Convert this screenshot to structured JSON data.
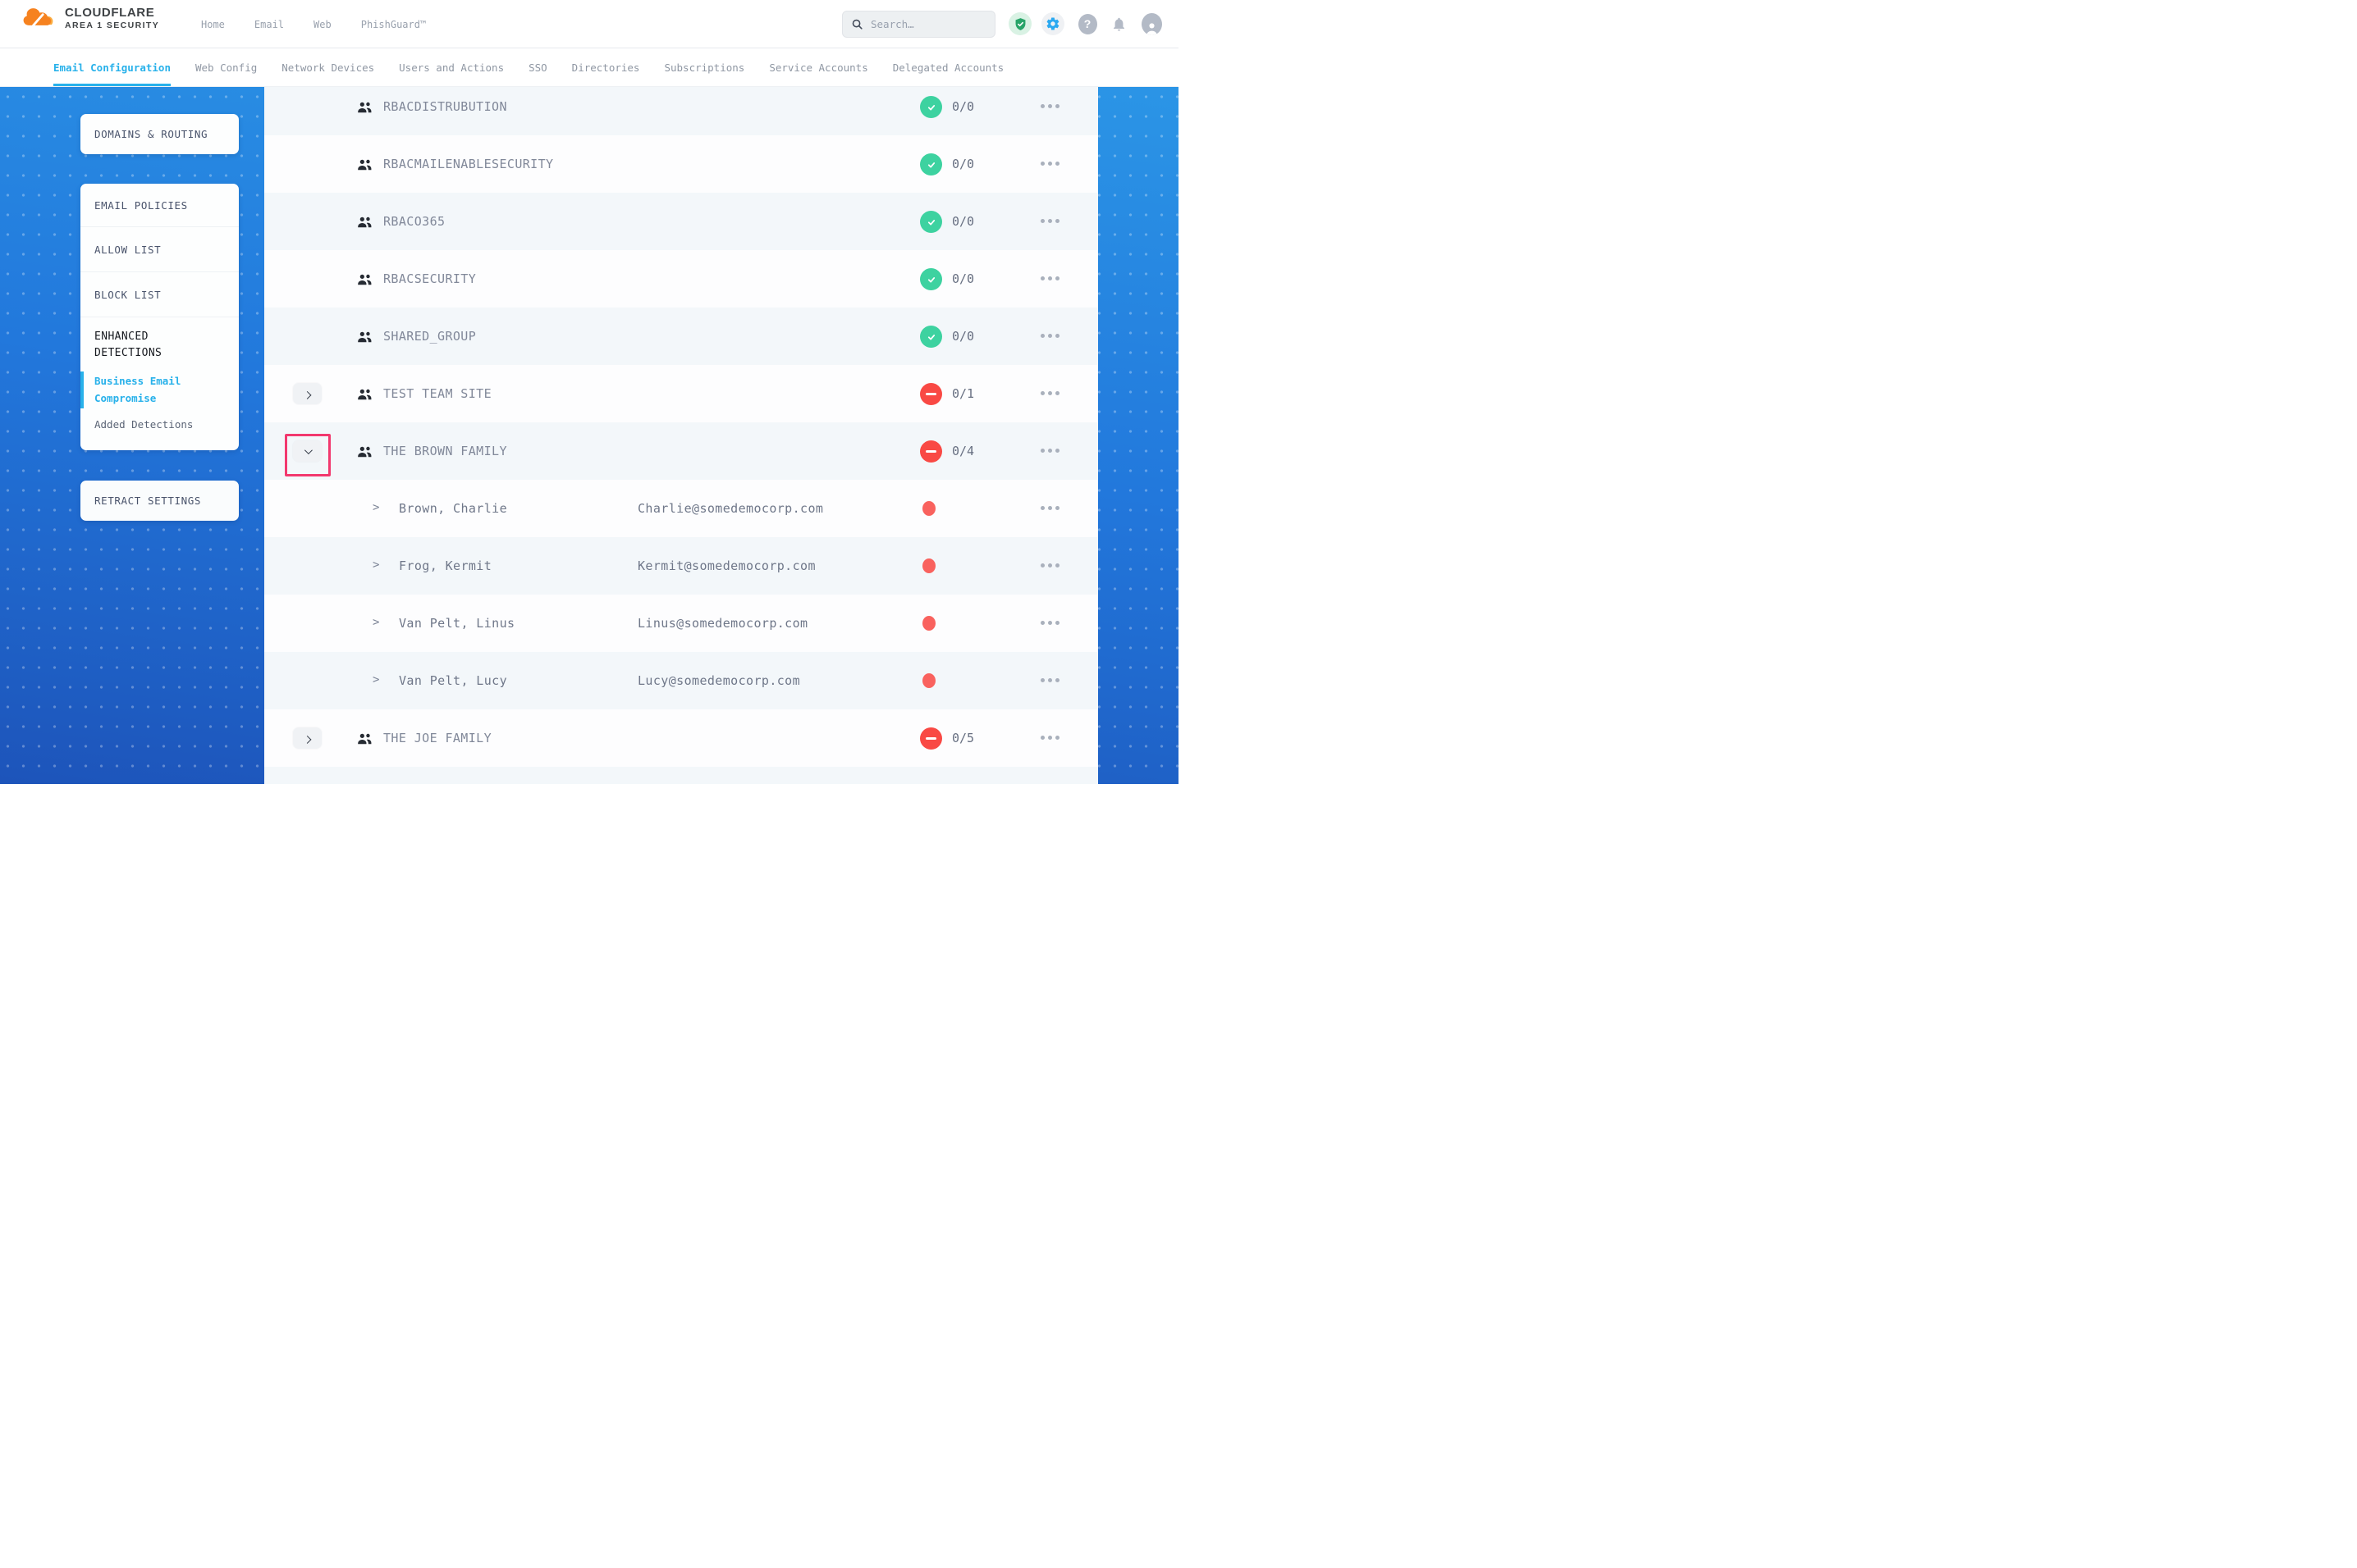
{
  "topbar": {
    "brand": {
      "line1": "CLOUDFLARE",
      "line2": "AREA 1 SECURITY"
    },
    "nav": [
      "Home",
      "Email",
      "Web",
      "PhishGuard™"
    ],
    "search_placeholder": "Search…",
    "icons": [
      "shield-check",
      "settings-gear",
      "help",
      "notifications-bell",
      "account"
    ]
  },
  "subnav": {
    "items": [
      {
        "label": "Email Configuration",
        "active": true
      },
      {
        "label": "Web Config",
        "active": false
      },
      {
        "label": "Network Devices",
        "active": false
      },
      {
        "label": "Users and Actions",
        "active": false
      },
      {
        "label": "SSO",
        "active": false
      },
      {
        "label": "Directories",
        "active": false
      },
      {
        "label": "Subscriptions",
        "active": false
      },
      {
        "label": "Service Accounts",
        "active": false
      },
      {
        "label": "Delegated Accounts",
        "active": false
      }
    ]
  },
  "sidebar": {
    "domains_routing": "DOMAINS & ROUTING",
    "email_policies": "EMAIL POLICIES",
    "allow_list": "ALLOW LIST",
    "block_list": "BLOCK LIST",
    "enhanced_detections": "ENHANCED DETECTIONS",
    "business_email_compromise": "Business Email Compromise",
    "added_detections": "Added Detections",
    "retract_settings": "RETRACT SETTINGS"
  },
  "table": {
    "rows": [
      {
        "type": "group",
        "name": "RBACDISTRUBUTION",
        "status": "ok",
        "count": "0/0",
        "expander": "none"
      },
      {
        "type": "group",
        "name": "RBACMAILENABLESECURITY",
        "status": "ok",
        "count": "0/0",
        "expander": "none"
      },
      {
        "type": "group",
        "name": "RBACO365",
        "status": "ok",
        "count": "0/0",
        "expander": "none"
      },
      {
        "type": "group",
        "name": "RBACSECURITY",
        "status": "ok",
        "count": "0/0",
        "expander": "none"
      },
      {
        "type": "group",
        "name": "SHARED_GROUP",
        "status": "ok",
        "count": "0/0",
        "expander": "none"
      },
      {
        "type": "group",
        "name": "TEST TEAM SITE",
        "status": "blocked",
        "count": "0/1",
        "expander": "collapsed"
      },
      {
        "type": "group",
        "name": "THE BROWN FAMILY",
        "status": "blocked",
        "count": "0/4",
        "expander": "expanded",
        "highlighted": true
      },
      {
        "type": "member",
        "name": "Brown, Charlie",
        "email": "Charlie@somedemocorp.com"
      },
      {
        "type": "member",
        "name": "Frog, Kermit",
        "email": "Kermit@somedemocorp.com"
      },
      {
        "type": "member",
        "name": "Van Pelt, Linus",
        "email": "Linus@somedemocorp.com"
      },
      {
        "type": "member",
        "name": "Van Pelt, Lucy",
        "email": "Lucy@somedemocorp.com"
      },
      {
        "type": "group",
        "name": "THE JOE FAMILY",
        "status": "blocked",
        "count": "0/5",
        "expander": "collapsed"
      },
      {
        "type": "spacer"
      }
    ]
  },
  "colors": {
    "accent_cyan": "#28b1ea",
    "brand_orange": "#f6821f",
    "brand_orange_light": "#fbad41",
    "status_ok_green": "#3dd2a0",
    "status_blocked_red": "#f94944",
    "member_dot_red": "#f9625e",
    "annotation_pink": "#f2386e",
    "sidebar_blue_top": "#2b95e6",
    "sidebar_blue_bottom": "#1d54ba"
  }
}
